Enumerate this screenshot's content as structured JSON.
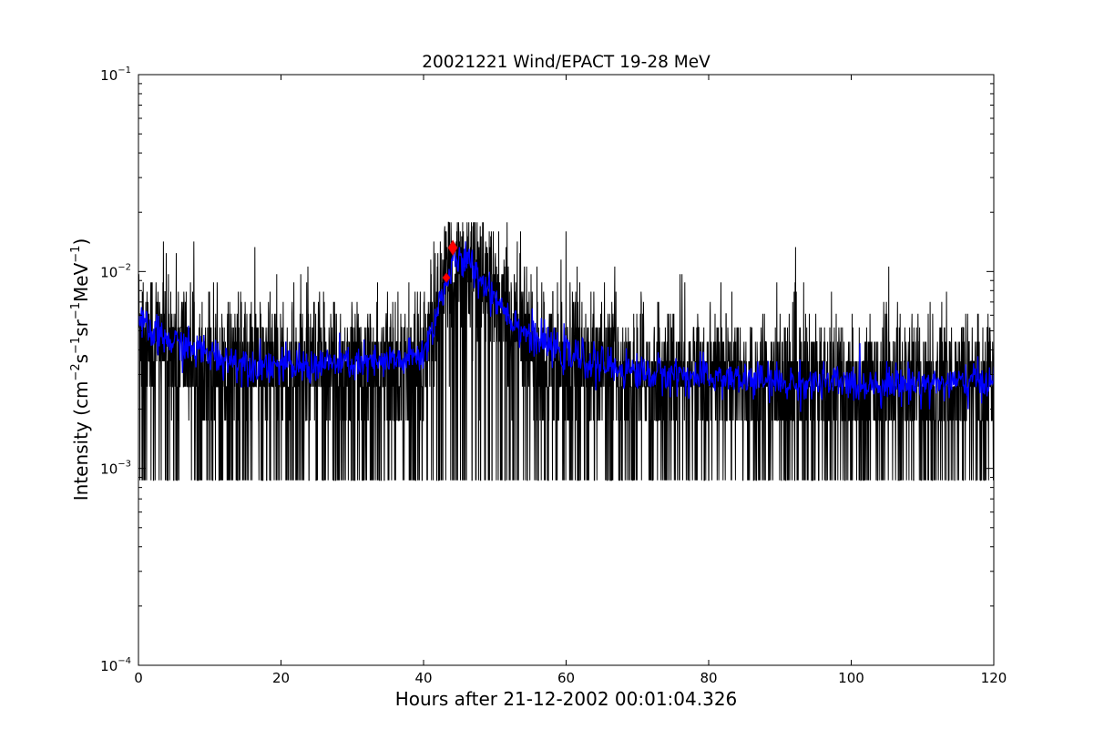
{
  "chart_data": {
    "type": "line",
    "title": "20021221 Wind/EPACT 19-28 MeV",
    "xlabel": "Hours after 21-12-2002 00:01:04.326",
    "ylabel": {
      "base": "Intensity (cm",
      "sup1": "−2",
      "mid1": "s",
      "sup2": "−1",
      "mid2": "sr",
      "sup3": "−1",
      "mid3": "MeV",
      "sup4": "−1",
      "end": ")"
    },
    "xlim": [
      0,
      120
    ],
    "ylim": [
      0.0001,
      0.1
    ],
    "yscale": "log",
    "x_ticks": [
      {
        "value": 0,
        "label": "0"
      },
      {
        "value": 20,
        "label": "20"
      },
      {
        "value": 40,
        "label": "40"
      },
      {
        "value": 60,
        "label": "60"
      },
      {
        "value": 80,
        "label": "80"
      },
      {
        "value": 100,
        "label": "100"
      },
      {
        "value": 120,
        "label": "120"
      }
    ],
    "y_ticks": [
      {
        "value": 0.0001,
        "base": "10",
        "exp": "−4"
      },
      {
        "value": 0.001,
        "base": "10",
        "exp": "−3"
      },
      {
        "value": 0.01,
        "base": "10",
        "exp": "−2"
      },
      {
        "value": 0.1,
        "base": "10",
        "exp": "−1"
      }
    ],
    "grid": false,
    "series": [
      {
        "role": "raw",
        "color": "#000000",
        "x": [
          0,
          2,
          4,
          6,
          8,
          10,
          12,
          14,
          16,
          18,
          20,
          22,
          24,
          26,
          28,
          30,
          32,
          34,
          36,
          38,
          40,
          41,
          42,
          43,
          44,
          45,
          46,
          47,
          48,
          50,
          52,
          54,
          56,
          58,
          60,
          62,
          64,
          66,
          68,
          70,
          72,
          74,
          76,
          78,
          80,
          82,
          84,
          86,
          88,
          90,
          92,
          94,
          96,
          98,
          100,
          102,
          104,
          106,
          108,
          110,
          112,
          114,
          116,
          118,
          120
        ],
        "y": [
          0.0055,
          0.0048,
          0.0045,
          0.0042,
          0.004,
          0.0038,
          0.0036,
          0.0035,
          0.0034,
          0.0034,
          0.0033,
          0.0033,
          0.0033,
          0.0034,
          0.0034,
          0.0034,
          0.0034,
          0.0034,
          0.0035,
          0.0036,
          0.0038,
          0.0048,
          0.0065,
          0.0085,
          0.0105,
          0.0115,
          0.0112,
          0.0105,
          0.0092,
          0.0075,
          0.006,
          0.005,
          0.0045,
          0.0041,
          0.0038,
          0.0036,
          0.0034,
          0.0033,
          0.0032,
          0.0031,
          0.003,
          0.003,
          0.003,
          0.0029,
          0.0029,
          0.0029,
          0.0028,
          0.0028,
          0.0028,
          0.0027,
          0.0027,
          0.0027,
          0.0027,
          0.0027,
          0.0027,
          0.0027,
          0.0027,
          0.0027,
          0.0027,
          0.0027,
          0.0027,
          0.0027,
          0.0027,
          0.0028,
          0.0028
        ],
        "floor": 0.00087,
        "ceiling": 0.0185
      },
      {
        "role": "smoothed",
        "color": "#0000ff",
        "x": [
          0,
          2,
          4,
          6,
          8,
          10,
          12,
          14,
          16,
          18,
          20,
          22,
          24,
          26,
          28,
          30,
          32,
          34,
          36,
          38,
          40,
          41,
          42,
          43,
          44,
          45,
          46,
          47,
          48,
          50,
          52,
          54,
          56,
          58,
          60,
          62,
          64,
          66,
          68,
          70,
          72,
          74,
          76,
          78,
          80,
          82,
          84,
          86,
          88,
          90,
          92,
          94,
          96,
          98,
          100,
          102,
          104,
          106,
          108,
          110,
          112,
          114,
          116,
          118,
          120
        ],
        "y": [
          0.0055,
          0.0048,
          0.0045,
          0.0042,
          0.004,
          0.0038,
          0.0036,
          0.0035,
          0.0034,
          0.0034,
          0.0033,
          0.0033,
          0.0033,
          0.0034,
          0.0034,
          0.0034,
          0.0034,
          0.0034,
          0.0035,
          0.0036,
          0.0038,
          0.0048,
          0.0065,
          0.0085,
          0.0105,
          0.0115,
          0.0112,
          0.0105,
          0.0092,
          0.0075,
          0.006,
          0.005,
          0.0045,
          0.0041,
          0.0038,
          0.0036,
          0.0034,
          0.0033,
          0.0032,
          0.0031,
          0.003,
          0.003,
          0.003,
          0.0029,
          0.0029,
          0.0029,
          0.0028,
          0.0028,
          0.0028,
          0.0027,
          0.0027,
          0.0027,
          0.0027,
          0.0027,
          0.0027,
          0.0027,
          0.0027,
          0.0027,
          0.0027,
          0.0027,
          0.0027,
          0.0027,
          0.0027,
          0.0028,
          0.0028
        ]
      }
    ],
    "markers": [
      {
        "x": 43.2,
        "y": 0.0093,
        "shape": "diamond",
        "color": "#ff0000",
        "size": "small"
      },
      {
        "x": 44.1,
        "y": 0.0132,
        "shape": "diamond",
        "color": "#ff0000",
        "size": "large"
      }
    ]
  }
}
